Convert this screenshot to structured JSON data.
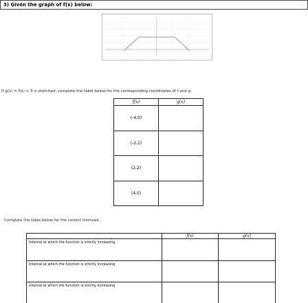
{
  "header": {
    "title": "3) Given the graph of f(x) below:"
  },
  "instruction": "If g(x) = f(x) + 3 is sketched, complete the table below for the corresponding coordinates of f and g:",
  "table1": {
    "headers": [
      "f(x)",
      "g(x)"
    ],
    "rows": [
      [
        "(-4,0)"
      ],
      [
        "(-2,2)"
      ],
      [
        "(2,2)"
      ],
      [
        "(4,0)"
      ]
    ]
  },
  "instruction2": "Complete the table below for the correct intervals:",
  "table2": {
    "headers": [
      "f(x)",
      "g(x)"
    ],
    "rows": [
      [
        "Interval at which the function is strictly increasing"
      ],
      [
        "Interval at which the function is strictly increasing"
      ],
      [
        "Interval at which the function is strictly increasing"
      ]
    ]
  }
}
